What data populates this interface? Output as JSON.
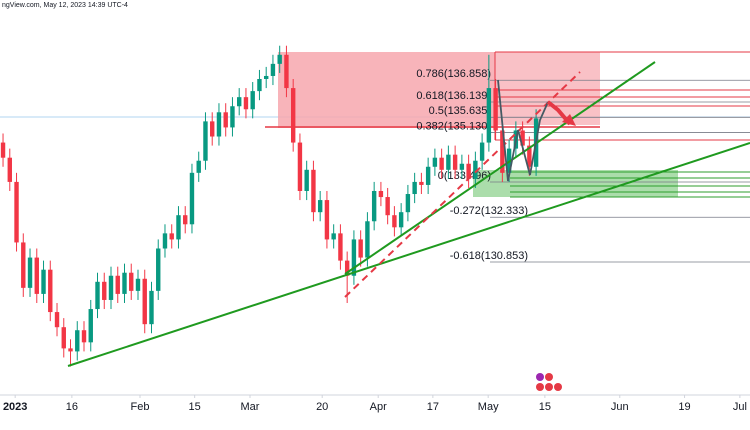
{
  "header": "ngView.com, May 12, 2023 14:39 UTC-4",
  "chart_data": {
    "type": "candlestick",
    "open": [
      134.8,
      134.3,
      133.5,
      131.5,
      130.0,
      131.0,
      129.8,
      130.6,
      129.2,
      128.7,
      128.0,
      127.9,
      128.6,
      128.2,
      129.3,
      130.2,
      129.6,
      130.4,
      129.8,
      130.5,
      129.9,
      130.3,
      128.8,
      129.9,
      131.3,
      131.8,
      131.6,
      132.4,
      132.1,
      133.8,
      134.2,
      135.5,
      135.0,
      135.8,
      135.3,
      136.0,
      136.3,
      135.9,
      136.5,
      136.9,
      137.0,
      137.4,
      137.7,
      136.6,
      134.8,
      133.2,
      133.9,
      132.5,
      132.9,
      131.6,
      131.8,
      130.9,
      130.4,
      131.6,
      131.0,
      132.2,
      133.2,
      133.0,
      132.4,
      132.0,
      132.5,
      133.1,
      133.5,
      133.4,
      134.0,
      134.3,
      133.9,
      134.4,
      133.9,
      134.1,
      133.6,
      134.2,
      134.8,
      136.6,
      135.2,
      133.8,
      134.6,
      135.2,
      134.7,
      134.0
    ],
    "high": [
      135.1,
      134.6,
      133.8,
      131.8,
      131.3,
      131.3,
      130.9,
      130.9,
      129.5,
      129.0,
      128.3,
      128.9,
      128.9,
      129.6,
      130.5,
      130.5,
      130.7,
      130.7,
      130.8,
      130.8,
      130.6,
      130.6,
      130.2,
      131.6,
      132.1,
      132.1,
      132.7,
      132.7,
      134.1,
      134.5,
      135.8,
      135.8,
      136.1,
      136.1,
      136.3,
      136.6,
      136.6,
      136.8,
      137.2,
      137.3,
      137.7,
      138.0,
      138.0,
      136.9,
      135.1,
      134.2,
      134.2,
      133.2,
      133.2,
      132.1,
      132.1,
      131.2,
      131.9,
      131.9,
      132.5,
      133.5,
      133.5,
      133.3,
      132.7,
      132.8,
      133.4,
      133.8,
      133.8,
      134.3,
      134.6,
      134.6,
      134.7,
      134.7,
      134.4,
      134.4,
      134.5,
      135.1,
      137.7,
      136.9,
      135.5,
      134.9,
      135.5,
      135.5,
      135.0,
      135.9
    ],
    "low": [
      134.0,
      133.2,
      131.2,
      129.7,
      129.7,
      129.5,
      129.5,
      128.9,
      128.4,
      127.7,
      127.4,
      127.6,
      127.9,
      127.9,
      129.0,
      129.3,
      129.3,
      129.5,
      129.5,
      129.6,
      129.6,
      128.5,
      128.5,
      129.6,
      131.0,
      131.3,
      131.3,
      131.8,
      131.8,
      133.5,
      133.9,
      134.7,
      134.7,
      135.0,
      135.0,
      135.7,
      135.6,
      135.6,
      136.2,
      136.6,
      136.7,
      137.1,
      136.3,
      134.5,
      132.9,
      132.9,
      132.2,
      132.2,
      131.3,
      131.3,
      130.6,
      129.5,
      130.1,
      130.7,
      130.7,
      131.9,
      132.7,
      132.1,
      131.7,
      131.7,
      132.2,
      132.8,
      133.1,
      133.1,
      133.7,
      133.6,
      133.6,
      133.6,
      133.6,
      133.3,
      133.3,
      133.9,
      134.5,
      134.9,
      133.5,
      133.5,
      134.3,
      134.4,
      133.7,
      133.7
    ],
    "close": [
      134.3,
      133.5,
      131.5,
      130.0,
      131.0,
      129.8,
      130.6,
      129.2,
      128.7,
      128.0,
      127.9,
      128.6,
      128.2,
      129.3,
      130.2,
      129.6,
      130.4,
      129.8,
      130.5,
      129.9,
      130.3,
      128.8,
      129.9,
      131.3,
      131.8,
      131.6,
      132.4,
      132.1,
      133.8,
      134.2,
      135.5,
      135.0,
      135.8,
      135.3,
      136.0,
      136.3,
      135.9,
      136.5,
      136.9,
      137.0,
      137.4,
      137.7,
      136.6,
      134.8,
      133.2,
      133.9,
      132.5,
      132.9,
      131.6,
      131.8,
      130.9,
      130.4,
      131.6,
      131.0,
      132.2,
      133.2,
      133.0,
      132.4,
      132.0,
      132.5,
      133.1,
      133.5,
      133.4,
      134.0,
      134.3,
      133.9,
      134.4,
      133.9,
      134.1,
      133.6,
      134.2,
      134.8,
      136.6,
      135.2,
      133.8,
      134.6,
      135.2,
      134.7,
      134.0,
      135.6
    ],
    "up_color": "#089981",
    "down_color": "#f23645",
    "ylim": [
      126.46,
      139.51
    ],
    "xlim": [
      -0.45,
      110.7
    ],
    "xticks": [
      {
        "value": 1.8,
        "label": "2023"
      },
      {
        "value": 10.2,
        "label": "16"
      },
      {
        "value": 20.3,
        "label": "Feb"
      },
      {
        "value": 28.4,
        "label": "15"
      },
      {
        "value": 36.6,
        "label": "Mar"
      },
      {
        "value": 47.3,
        "label": "20"
      },
      {
        "value": 55.6,
        "label": "Apr"
      },
      {
        "value": 63.7,
        "label": "17"
      },
      {
        "value": 71.9,
        "label": "May"
      },
      {
        "value": 80.3,
        "label": "15"
      },
      {
        "value": 91.4,
        "label": "Jun"
      },
      {
        "value": 101.0,
        "label": "19"
      },
      {
        "value": 109.2,
        "label": "Jul"
      }
    ],
    "fib_levels": [
      {
        "value": 136.858,
        "label": "0.786(136.858)"
      },
      {
        "value": 136.139,
        "label": "0.618(136.139)"
      },
      {
        "value": 135.635,
        "label": "0.5(135.635)"
      },
      {
        "value": 135.13,
        "label": "0.382(135.130)"
      },
      {
        "value": 133.496,
        "label": "0(133.496)"
      },
      {
        "value": 132.333,
        "label": "-0.272(132.333)"
      },
      {
        "value": 130.853,
        "label": "-0.618(130.853)"
      }
    ]
  }
}
